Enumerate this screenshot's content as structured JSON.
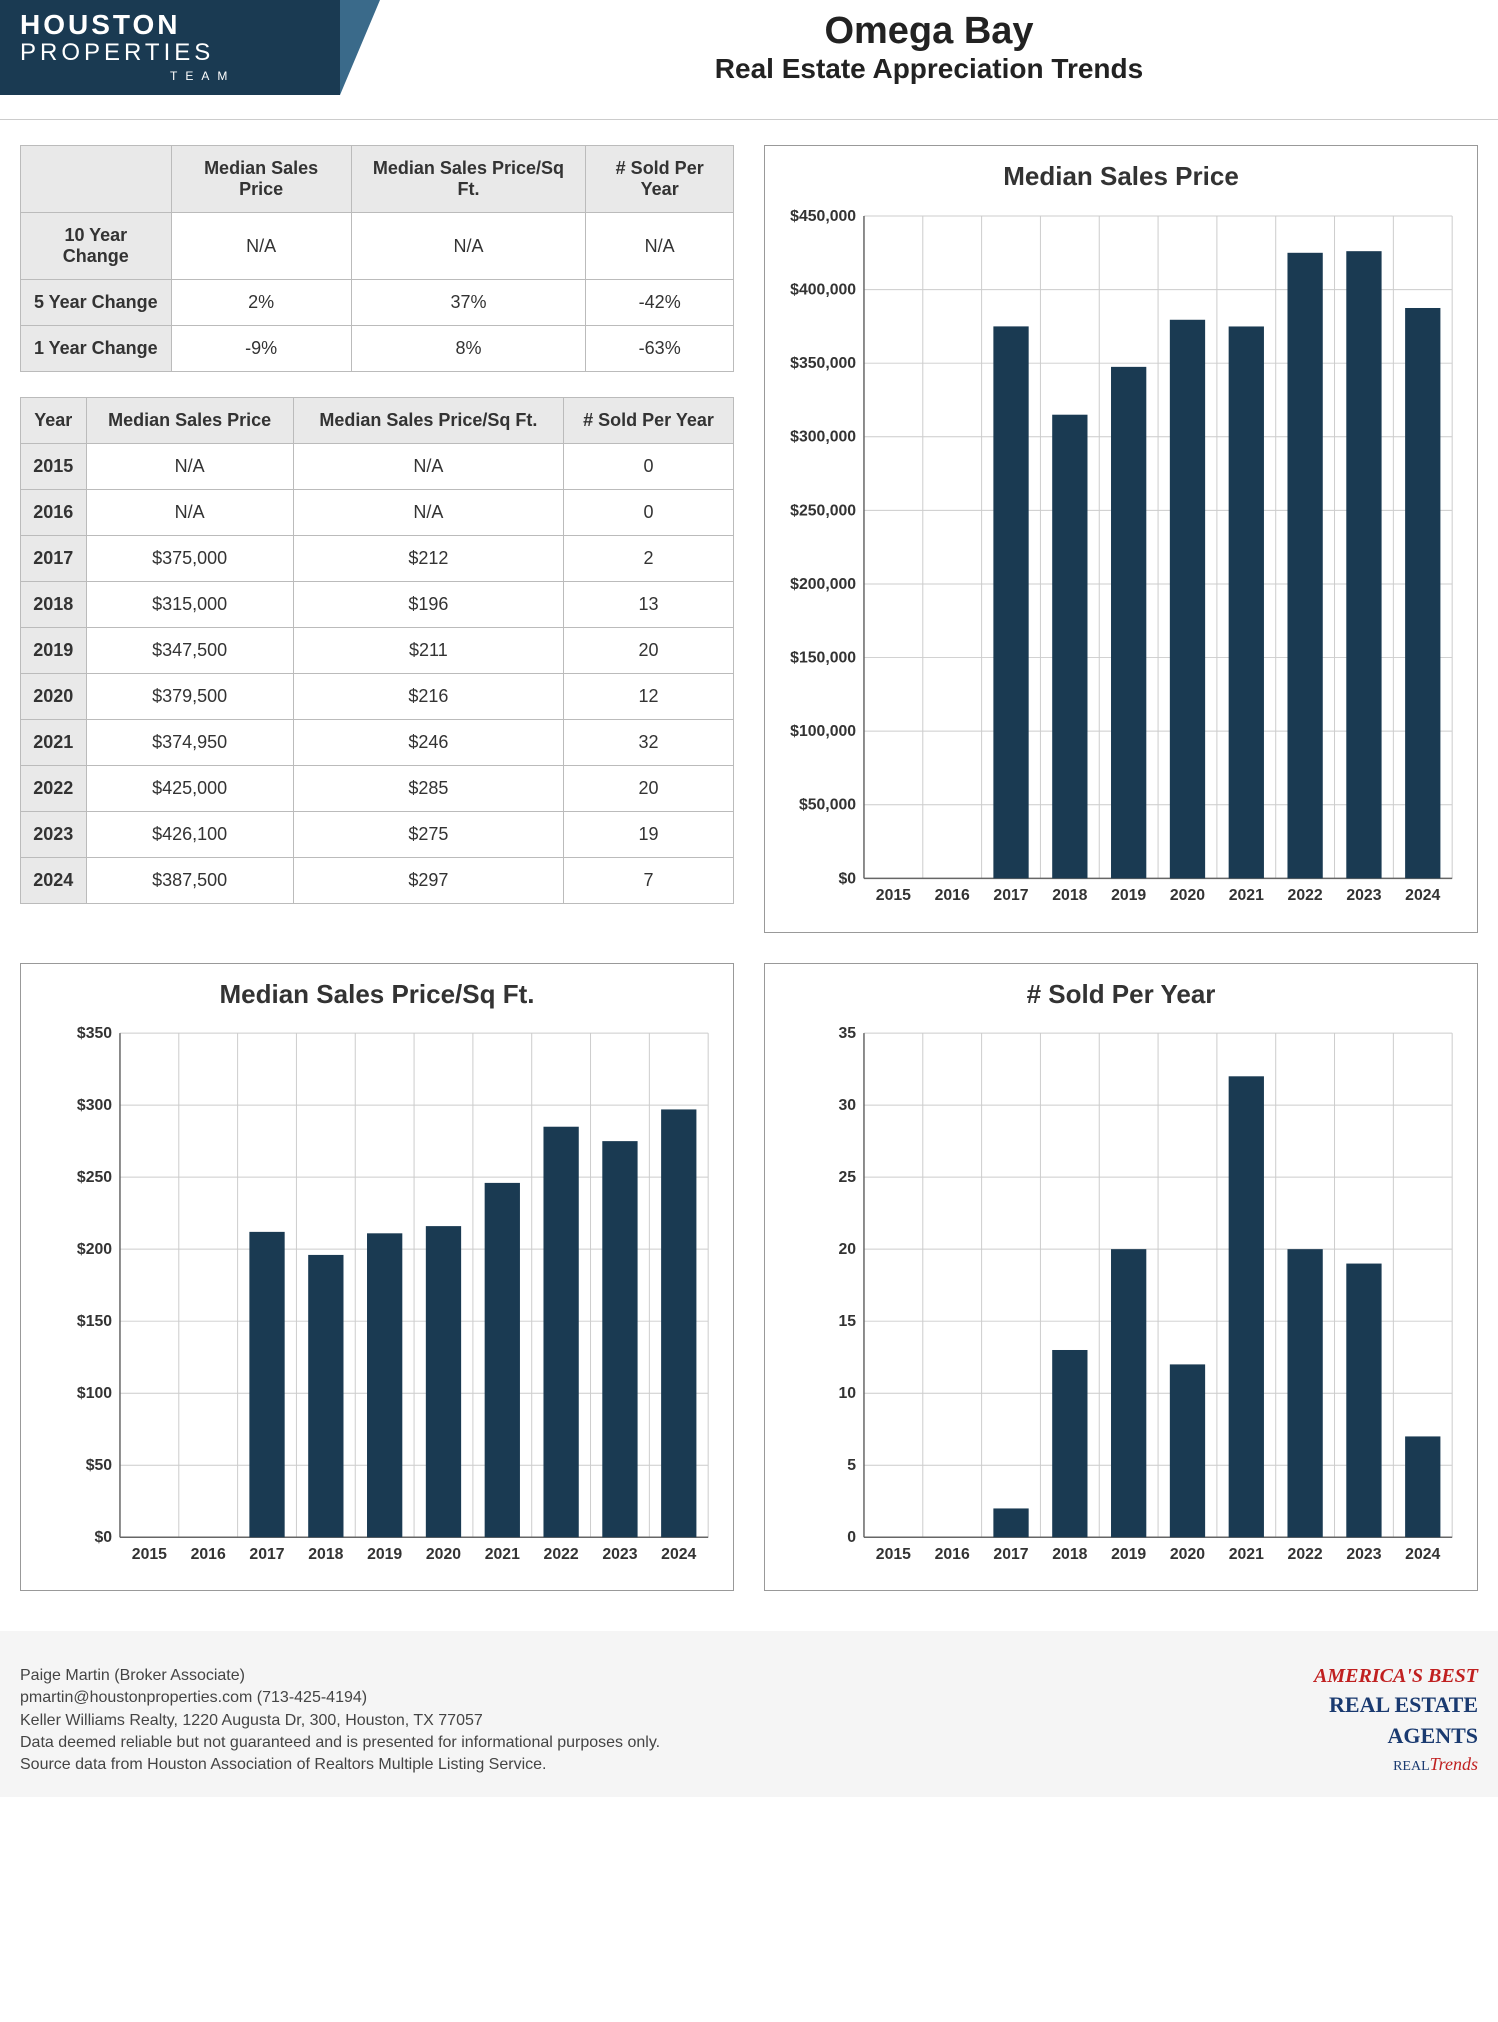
{
  "logo": {
    "line1": "HOUSTON",
    "line2": "PROPERTIES",
    "line3": "TEAM",
    "bg_color": "#1a3a52",
    "accent_color": "#3a6a8a"
  },
  "title": {
    "main": "Omega Bay",
    "sub": "Real Estate Appreciation Trends"
  },
  "summary_table": {
    "columns": [
      "",
      "Median Sales Price",
      "Median Sales Price/Sq Ft.",
      "# Sold Per Year"
    ],
    "rows": [
      [
        "10 Year Change",
        "N/A",
        "N/A",
        "N/A"
      ],
      [
        "5 Year Change",
        "2%",
        "37%",
        "-42%"
      ],
      [
        "1 Year Change",
        "-9%",
        "8%",
        "-63%"
      ]
    ]
  },
  "yearly_table": {
    "columns": [
      "Year",
      "Median Sales Price",
      "Median Sales Price/Sq Ft.",
      "# Sold Per Year"
    ],
    "rows": [
      [
        "2015",
        "N/A",
        "N/A",
        "0"
      ],
      [
        "2016",
        "N/A",
        "N/A",
        "0"
      ],
      [
        "2017",
        "$375,000",
        "$212",
        "2"
      ],
      [
        "2018",
        "$315,000",
        "$196",
        "13"
      ],
      [
        "2019",
        "$347,500",
        "$211",
        "20"
      ],
      [
        "2020",
        "$379,500",
        "$216",
        "12"
      ],
      [
        "2021",
        "$374,950",
        "$246",
        "32"
      ],
      [
        "2022",
        "$425,000",
        "$285",
        "20"
      ],
      [
        "2023",
        "$426,100",
        "$275",
        "19"
      ],
      [
        "2024",
        "$387,500",
        "$297",
        "7"
      ]
    ]
  },
  "chart_price": {
    "type": "bar",
    "title": "Median Sales Price",
    "categories": [
      "2015",
      "2016",
      "2017",
      "2018",
      "2019",
      "2020",
      "2021",
      "2022",
      "2023",
      "2024"
    ],
    "values": [
      0,
      0,
      375000,
      315000,
      347500,
      379500,
      374950,
      425000,
      426100,
      387500
    ],
    "ylim": [
      0,
      450000
    ],
    "ytick_step": 50000,
    "ytick_labels": [
      "$0",
      "$50,000",
      "$100,000",
      "$150,000",
      "$200,000",
      "$250,000",
      "$300,000",
      "$350,000",
      "$400,000",
      "$450,000"
    ],
    "bar_color": "#1a3a52",
    "grid_color": "#cccccc",
    "background_color": "#ffffff",
    "title_fontsize": 26,
    "label_fontsize": 16,
    "bar_width": 0.6
  },
  "chart_sqft": {
    "type": "bar",
    "title": "Median Sales Price/Sq Ft.",
    "categories": [
      "2015",
      "2016",
      "2017",
      "2018",
      "2019",
      "2020",
      "2021",
      "2022",
      "2023",
      "2024"
    ],
    "values": [
      0,
      0,
      212,
      196,
      211,
      216,
      246,
      285,
      275,
      297
    ],
    "ylim": [
      0,
      350
    ],
    "ytick_step": 50,
    "ytick_labels": [
      "$0",
      "$50",
      "$100",
      "$150",
      "$200",
      "$250",
      "$300",
      "$350"
    ],
    "bar_color": "#1a3a52",
    "grid_color": "#cccccc",
    "background_color": "#ffffff",
    "title_fontsize": 26,
    "label_fontsize": 16,
    "bar_width": 0.6
  },
  "chart_sold": {
    "type": "bar",
    "title": "# Sold Per Year",
    "categories": [
      "2015",
      "2016",
      "2017",
      "2018",
      "2019",
      "2020",
      "2021",
      "2022",
      "2023",
      "2024"
    ],
    "values": [
      0,
      0,
      2,
      13,
      20,
      12,
      32,
      20,
      19,
      7
    ],
    "ylim": [
      0,
      35
    ],
    "ytick_step": 5,
    "ytick_labels": [
      "0",
      "5",
      "10",
      "15",
      "20",
      "25",
      "30",
      "35"
    ],
    "bar_color": "#1a3a52",
    "grid_color": "#cccccc",
    "background_color": "#ffffff",
    "title_fontsize": 26,
    "label_fontsize": 16,
    "bar_width": 0.6
  },
  "footer": {
    "lines": [
      "Paige Martin (Broker Associate)",
      "pmartin@houstonproperties.com (713-425-4194)",
      "Keller Williams Realty, 1220 Augusta Dr, 300, Houston, TX 77057",
      "Data deemed reliable but not guaranteed and is presented for informational purposes only.",
      "Source data from Houston Association of Realtors Multiple Listing Service."
    ],
    "badge": {
      "l1": "AMERICA'S BEST",
      "l2": "REAL ESTATE",
      "l3": "AGENTS",
      "l4a": "REAL",
      "l4b": "Trends"
    }
  }
}
